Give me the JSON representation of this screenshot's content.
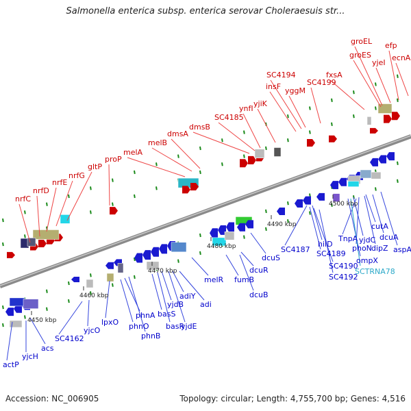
{
  "header": {
    "title": "Salmonella enterica subsp. enterica serovar Choleraesuis str..."
  },
  "footer": {
    "accession": "Accession: NC_006905",
    "summary": "Topology: circular; Length: 4,755,700 bp; Genes: 4,516"
  },
  "colors": {
    "forward_label": "#cc0000",
    "reverse_label": "#0000cc",
    "rna_label": "#2aa8c8",
    "backbone": "#8a8a8a",
    "tick": "#1a8a1a"
  },
  "scale_labels": [
    "4450 kbp",
    "4460 kbp",
    "4470 kbp",
    "4480 kbp",
    "4490 kbp",
    "4500 kbp"
  ],
  "forward_genes": [
    "nrfC",
    "nrfD",
    "nrfE",
    "nrfG",
    "gltP",
    "proP",
    "melA",
    "melB",
    "dmsA",
    "dmsB",
    "SC4185",
    "ynfI",
    "yjiK",
    "insF",
    "SC4194",
    "yggM",
    "SC4199",
    "fxsA",
    "groES",
    "groEL",
    "yjeI",
    "efp",
    "ecnA"
  ],
  "reverse_genes": [
    "actP",
    "yjcH",
    "acs",
    "SC4162",
    "yjcO",
    "lpxO",
    "phnO",
    "phnA",
    "phnB",
    "basS",
    "basR",
    "yjdB",
    "adiY",
    "yjdE",
    "adi",
    "melR",
    "fumB",
    "dcuR",
    "dcuB",
    "dcuS",
    "SC4187",
    "hilD",
    "SC4189",
    "SC4190",
    "SC4192",
    "TnpA",
    "phoN",
    "ompX",
    "yjdC",
    "dipZ",
    "cutA",
    "dcuA",
    "aspA"
  ],
  "rna_genes": [
    "SCTRNA78"
  ]
}
